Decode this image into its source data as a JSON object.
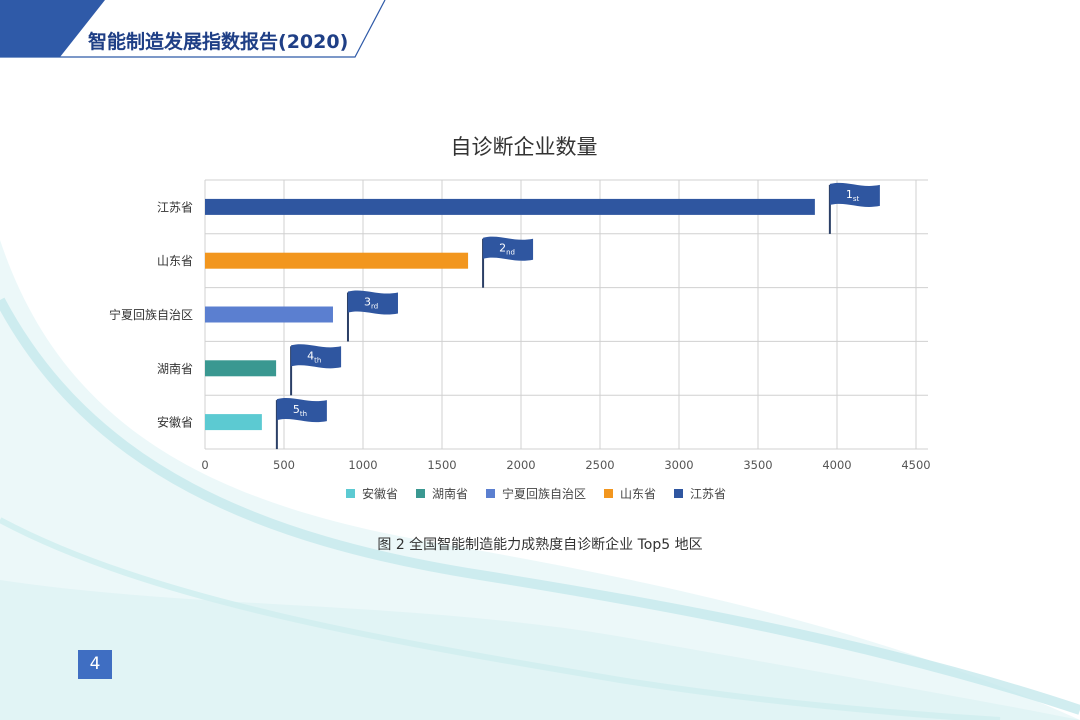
{
  "header": {
    "title": "智能制造发展指数报告",
    "year_open": "(",
    "year": "2020",
    "year_close": ")"
  },
  "colors": {
    "brand_blue": "#2f5aa8",
    "flag_blue": "#2f56a0",
    "header_text": "#1f3f86"
  },
  "chart_data": {
    "type": "bar",
    "orientation": "horizontal",
    "title": "自诊断企业数量",
    "xlabel": "",
    "ylabel": "",
    "xlim": [
      0,
      4500
    ],
    "x_ticks": [
      0,
      500,
      1000,
      1500,
      2000,
      2500,
      3000,
      3500,
      4000,
      4500
    ],
    "grid": true,
    "legend_position": "bottom",
    "categories": [
      "江苏省",
      "山东省",
      "宁夏回族自治区",
      "湖南省",
      "安徽省"
    ],
    "values": [
      3860,
      1665,
      810,
      450,
      360
    ],
    "bar_colors": [
      "#2f56a0",
      "#f2961e",
      "#5b7fd0",
      "#3a9891",
      "#5ccad2"
    ],
    "rank_labels": [
      {
        "num": "1",
        "suffix": "st"
      },
      {
        "num": "2",
        "suffix": "nd"
      },
      {
        "num": "3",
        "suffix": "rd"
      },
      {
        "num": "4",
        "suffix": "th"
      },
      {
        "num": "5",
        "suffix": "th"
      }
    ],
    "legend": [
      {
        "name": "安徽省",
        "color": "#5ccad2"
      },
      {
        "name": "湖南省",
        "color": "#3a9891"
      },
      {
        "name": "宁夏回族自治区",
        "color": "#5b7fd0"
      },
      {
        "name": "山东省",
        "color": "#f2961e"
      },
      {
        "name": "江苏省",
        "color": "#2f56a0"
      }
    ]
  },
  "caption": "图 2 全国智能制造能力成熟度自诊断企业 Top5 地区",
  "page_number": "4"
}
